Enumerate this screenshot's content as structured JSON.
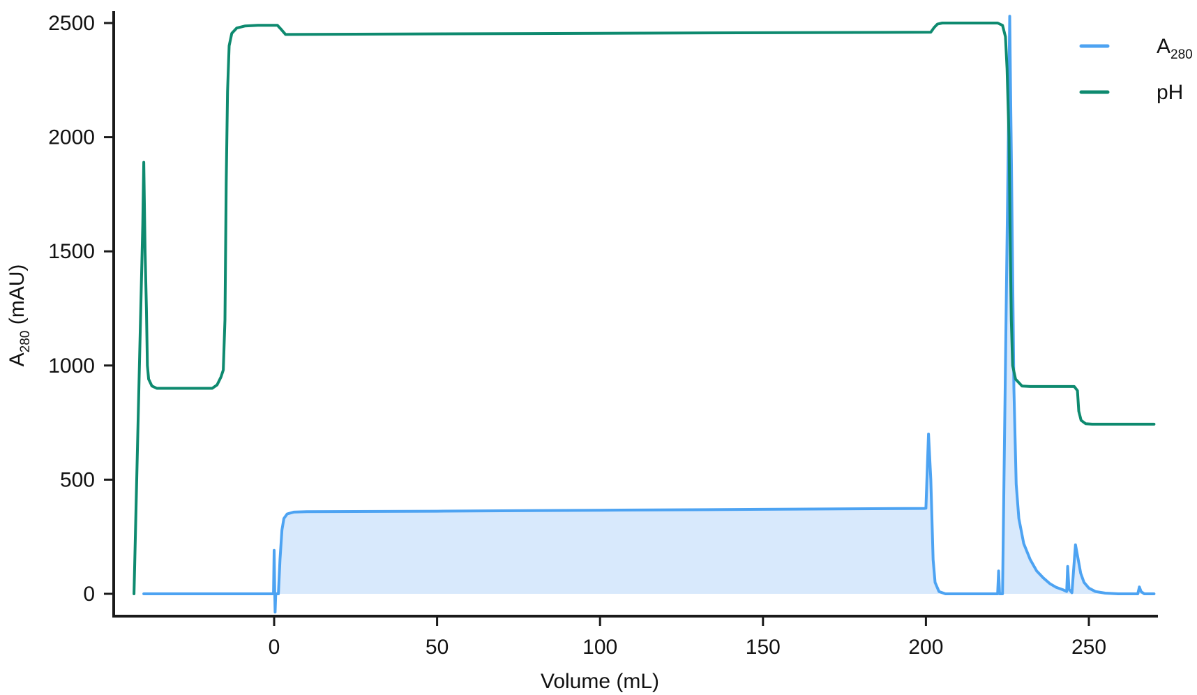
{
  "chart_data": {
    "type": "line",
    "xlabel": "Volume (mL)",
    "ylabel": {
      "main": "A",
      "sub": "280",
      "suffix": " (mAU)"
    },
    "xlim": [
      -50,
      270
    ],
    "ylim": [
      -80,
      2560
    ],
    "xticks": [
      0,
      50,
      100,
      150,
      200,
      250
    ],
    "xtick_labels": [
      "0",
      "50",
      "100",
      "150",
      "200",
      "250"
    ],
    "yticks": [
      0,
      500,
      1000,
      1500,
      2000,
      2500
    ],
    "ytick_labels": [
      "0",
      "500",
      "1000",
      "1500",
      "2000",
      "2500"
    ],
    "grid": false,
    "legend_position": "top-right",
    "series": [
      {
        "name": "A280",
        "label_main": "A",
        "label_sub": "280",
        "color": "#4da3f2",
        "fill": "#d8e9fc",
        "filled": true,
        "points": [
          [
            -40,
            0
          ],
          [
            -0.2,
            0
          ],
          [
            0,
            190
          ],
          [
            0.2,
            0
          ],
          [
            0.3,
            -80
          ],
          [
            0.5,
            0
          ],
          [
            1.3,
            0
          ],
          [
            1.8,
            150
          ],
          [
            2.4,
            280
          ],
          [
            3,
            330
          ],
          [
            4,
            350
          ],
          [
            6,
            358
          ],
          [
            10,
            360
          ],
          [
            50,
            362
          ],
          [
            100,
            366
          ],
          [
            150,
            370
          ],
          [
            199.5,
            374
          ],
          [
            200,
            375
          ],
          [
            200.3,
            500
          ],
          [
            200.8,
            700
          ],
          [
            201.5,
            500
          ],
          [
            202.2,
            150
          ],
          [
            202.8,
            50
          ],
          [
            204,
            10
          ],
          [
            206,
            0
          ],
          [
            222,
            0
          ],
          [
            222.3,
            100
          ],
          [
            222.6,
            0
          ],
          [
            223.5,
            0
          ],
          [
            225.3,
            2000
          ],
          [
            225.7,
            2530
          ],
          [
            226.3,
            1800
          ],
          [
            227,
            900
          ],
          [
            227.7,
            480
          ],
          [
            228.5,
            330
          ],
          [
            230,
            220
          ],
          [
            232,
            150
          ],
          [
            234,
            100
          ],
          [
            236,
            70
          ],
          [
            238,
            45
          ],
          [
            240,
            28
          ],
          [
            242,
            18
          ],
          [
            243.2,
            10
          ],
          [
            243.5,
            120
          ],
          [
            243.9,
            20
          ],
          [
            244.8,
            5
          ],
          [
            245.3,
            100
          ],
          [
            245.9,
            215
          ],
          [
            246.6,
            160
          ],
          [
            247.5,
            90
          ],
          [
            248.5,
            50
          ],
          [
            250,
            25
          ],
          [
            252,
            10
          ],
          [
            255,
            3
          ],
          [
            259,
            0
          ],
          [
            265,
            0
          ],
          [
            265.5,
            30
          ],
          [
            266,
            10
          ],
          [
            267,
            0
          ],
          [
            270,
            0
          ]
        ]
      },
      {
        "name": "pH",
        "label_main": "pH",
        "label_sub": "",
        "color": "#0e8a6f",
        "fill": "",
        "filled": false,
        "points": [
          [
            -43,
            0
          ],
          [
            -40.3,
            1620
          ],
          [
            -40,
            1890
          ],
          [
            -39.6,
            1500
          ],
          [
            -39.2,
            1250
          ],
          [
            -38.9,
            1000
          ],
          [
            -38.5,
            940
          ],
          [
            -37.5,
            910
          ],
          [
            -36,
            900
          ],
          [
            -19,
            900
          ],
          [
            -17.5,
            915
          ],
          [
            -16.3,
            950
          ],
          [
            -15.6,
            980
          ],
          [
            -15.1,
            1200
          ],
          [
            -14.7,
            1800
          ],
          [
            -14.3,
            2200
          ],
          [
            -13.8,
            2400
          ],
          [
            -13,
            2455
          ],
          [
            -11.5,
            2478
          ],
          [
            -9,
            2487
          ],
          [
            -5,
            2490
          ],
          [
            1,
            2490
          ],
          [
            2,
            2475
          ],
          [
            3.5,
            2450
          ],
          [
            100,
            2455
          ],
          [
            201.5,
            2460
          ],
          [
            202.5,
            2480
          ],
          [
            203.5,
            2495
          ],
          [
            205,
            2500
          ],
          [
            222,
            2500
          ],
          [
            223.5,
            2490
          ],
          [
            224.4,
            2440
          ],
          [
            224.9,
            2300
          ],
          [
            225.5,
            2000
          ],
          [
            225.9,
            1500
          ],
          [
            226.2,
            1200
          ],
          [
            226.6,
            1000
          ],
          [
            227.5,
            940
          ],
          [
            229.5,
            910
          ],
          [
            232,
            908
          ],
          [
            245.5,
            908
          ],
          [
            246.5,
            890
          ],
          [
            246.9,
            800
          ],
          [
            247.6,
            760
          ],
          [
            249,
            745
          ],
          [
            251,
            743
          ],
          [
            270,
            743
          ]
        ]
      }
    ]
  }
}
